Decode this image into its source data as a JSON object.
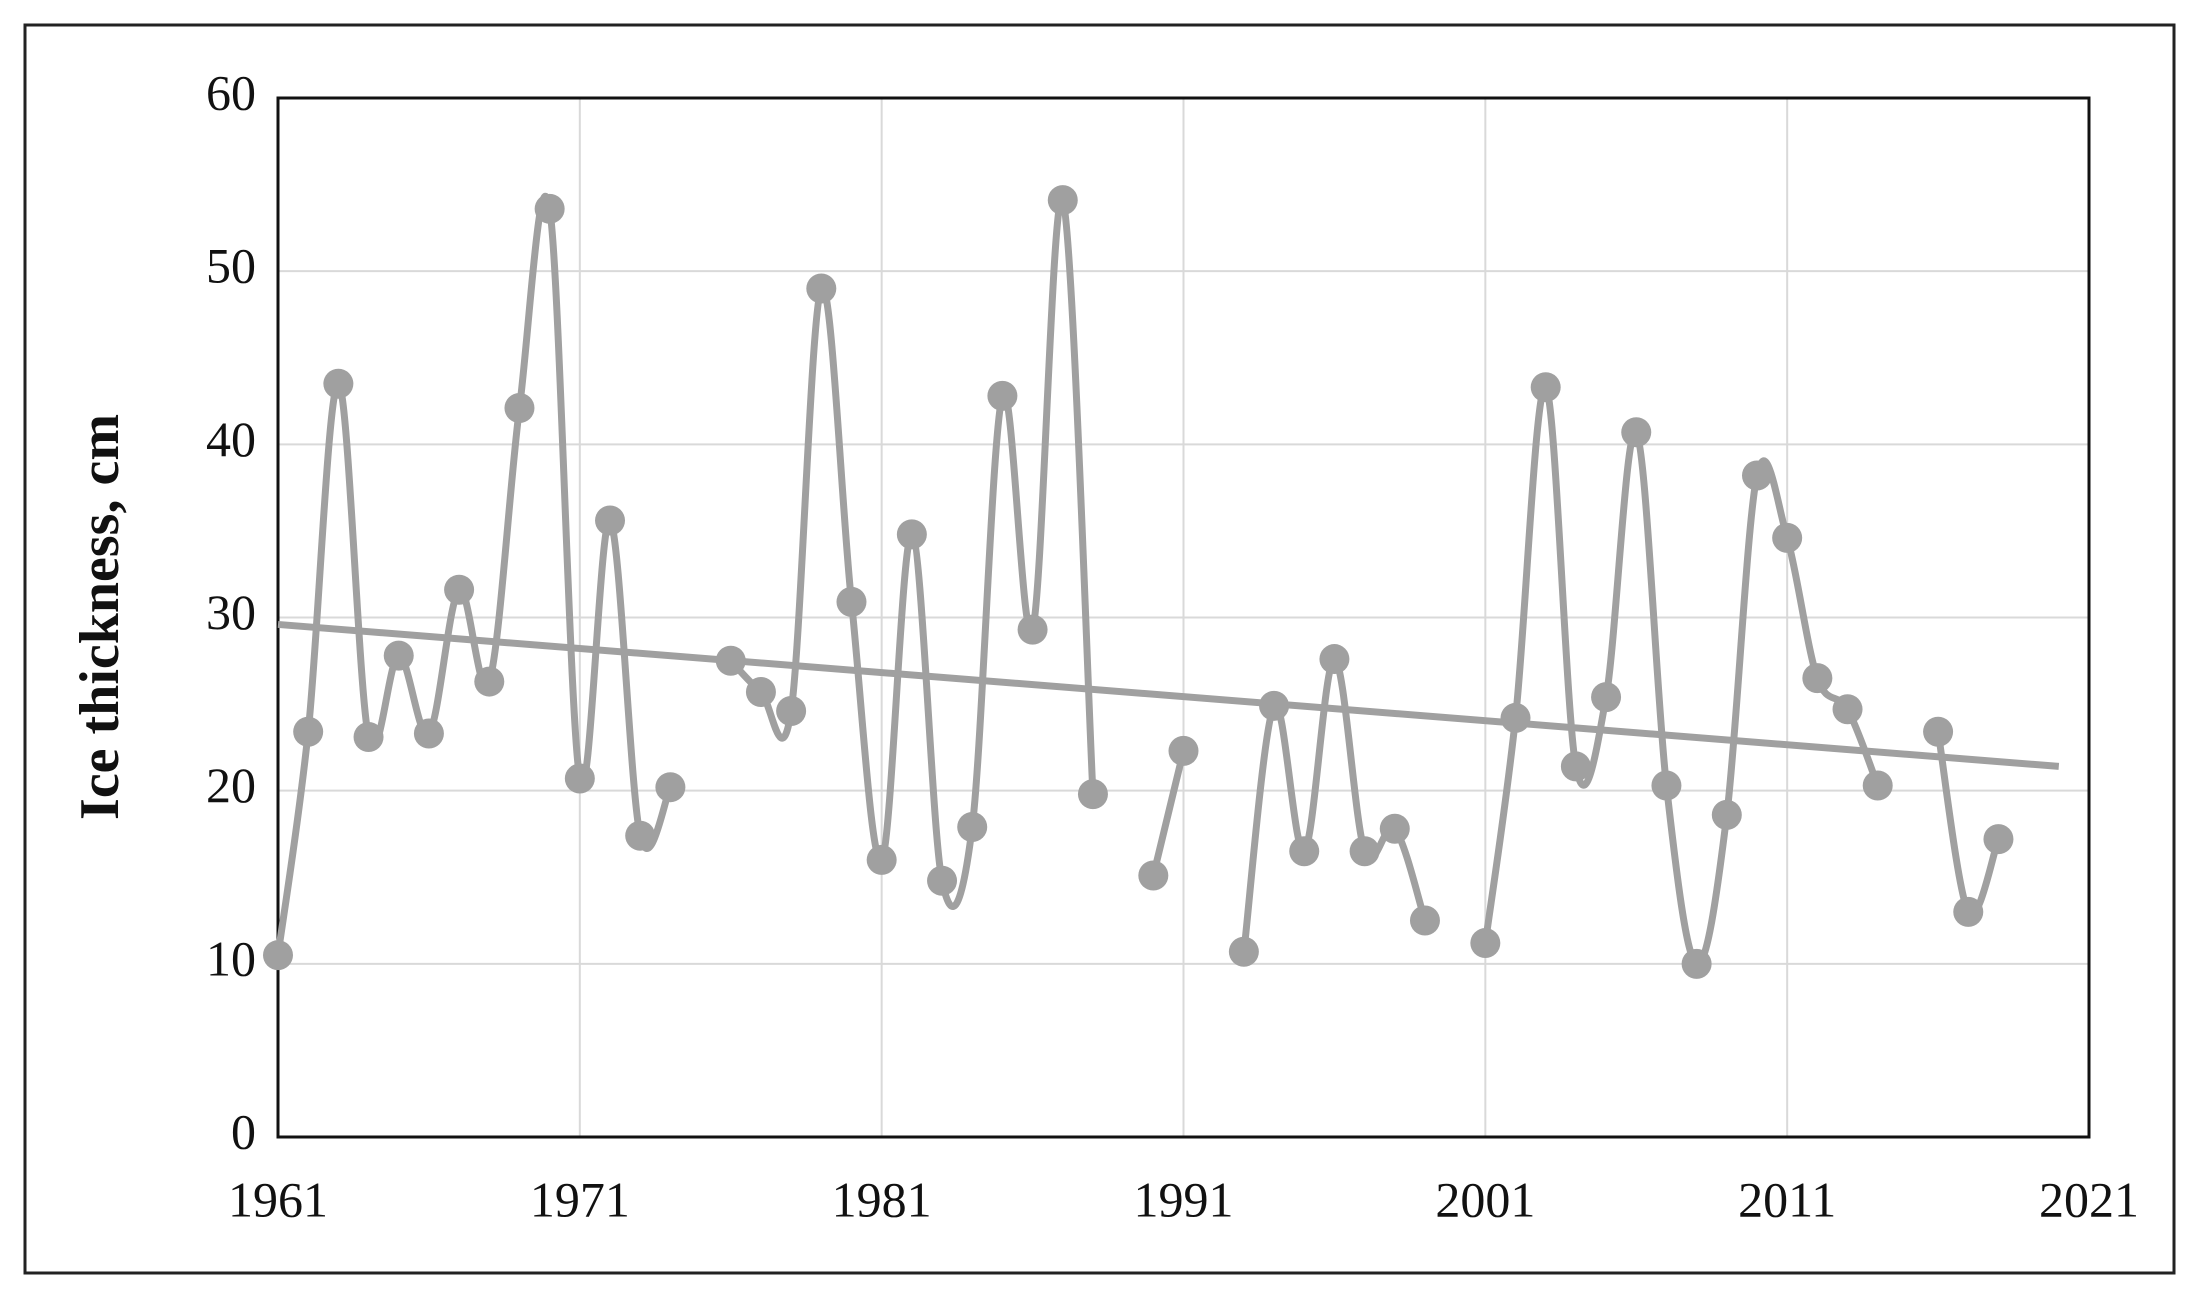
{
  "chart_data": {
    "type": "line",
    "y_label": "Ice thickness, cm",
    "x": [
      1961,
      1962,
      1963,
      1964,
      1965,
      1966,
      1967,
      1968,
      1969,
      1970,
      1971,
      1972,
      1973,
      1974,
      1975,
      1976,
      1977,
      1978,
      1979,
      1980,
      1981,
      1982,
      1983,
      1984,
      1985,
      1986,
      1987,
      1988,
      1989,
      1990,
      1991,
      1992,
      1993,
      1994,
      1995,
      1996,
      1997,
      1998,
      1999,
      2000,
      2001,
      2002,
      2003,
      2004,
      2005,
      2006,
      2007,
      2008,
      2009,
      2010,
      2011,
      2012,
      2013,
      2014,
      2015,
      2016,
      2017,
      2018
    ],
    "series": [
      {
        "color": "#a0a0a0",
        "values": [
          10.5,
          23.4,
          43.5,
          23.1,
          27.8,
          23.3,
          31.6,
          26.3,
          42.1,
          53.6,
          20.7,
          35.6,
          17.4,
          20.2,
          null,
          27.5,
          25.7,
          24.6,
          49.0,
          30.9,
          16.0,
          34.8,
          14.8,
          17.9,
          42.8,
          29.3,
          54.1,
          19.8,
          null,
          15.1,
          22.3,
          null,
          10.7,
          24.9,
          16.5,
          27.6,
          16.5,
          17.8,
          12.5,
          null,
          11.2,
          24.2,
          43.3,
          21.4,
          25.4,
          40.7,
          20.3,
          10.0,
          18.6,
          38.2,
          34.6,
          26.5,
          24.7,
          20.3,
          null,
          23.4,
          13.0,
          17.2
        ]
      }
    ],
    "trend": {
      "color": "#a0a0a0",
      "x": [
        1961,
        2020
      ],
      "values": [
        29.6,
        21.4
      ]
    },
    "xlim": [
      1961,
      2021
    ],
    "xticks": [
      1961,
      1971,
      1981,
      1991,
      2001,
      2011,
      2021
    ],
    "ylim": [
      0,
      60
    ],
    "yticks": [
      0,
      10,
      20,
      30,
      40,
      50,
      60
    ],
    "grid": true
  }
}
